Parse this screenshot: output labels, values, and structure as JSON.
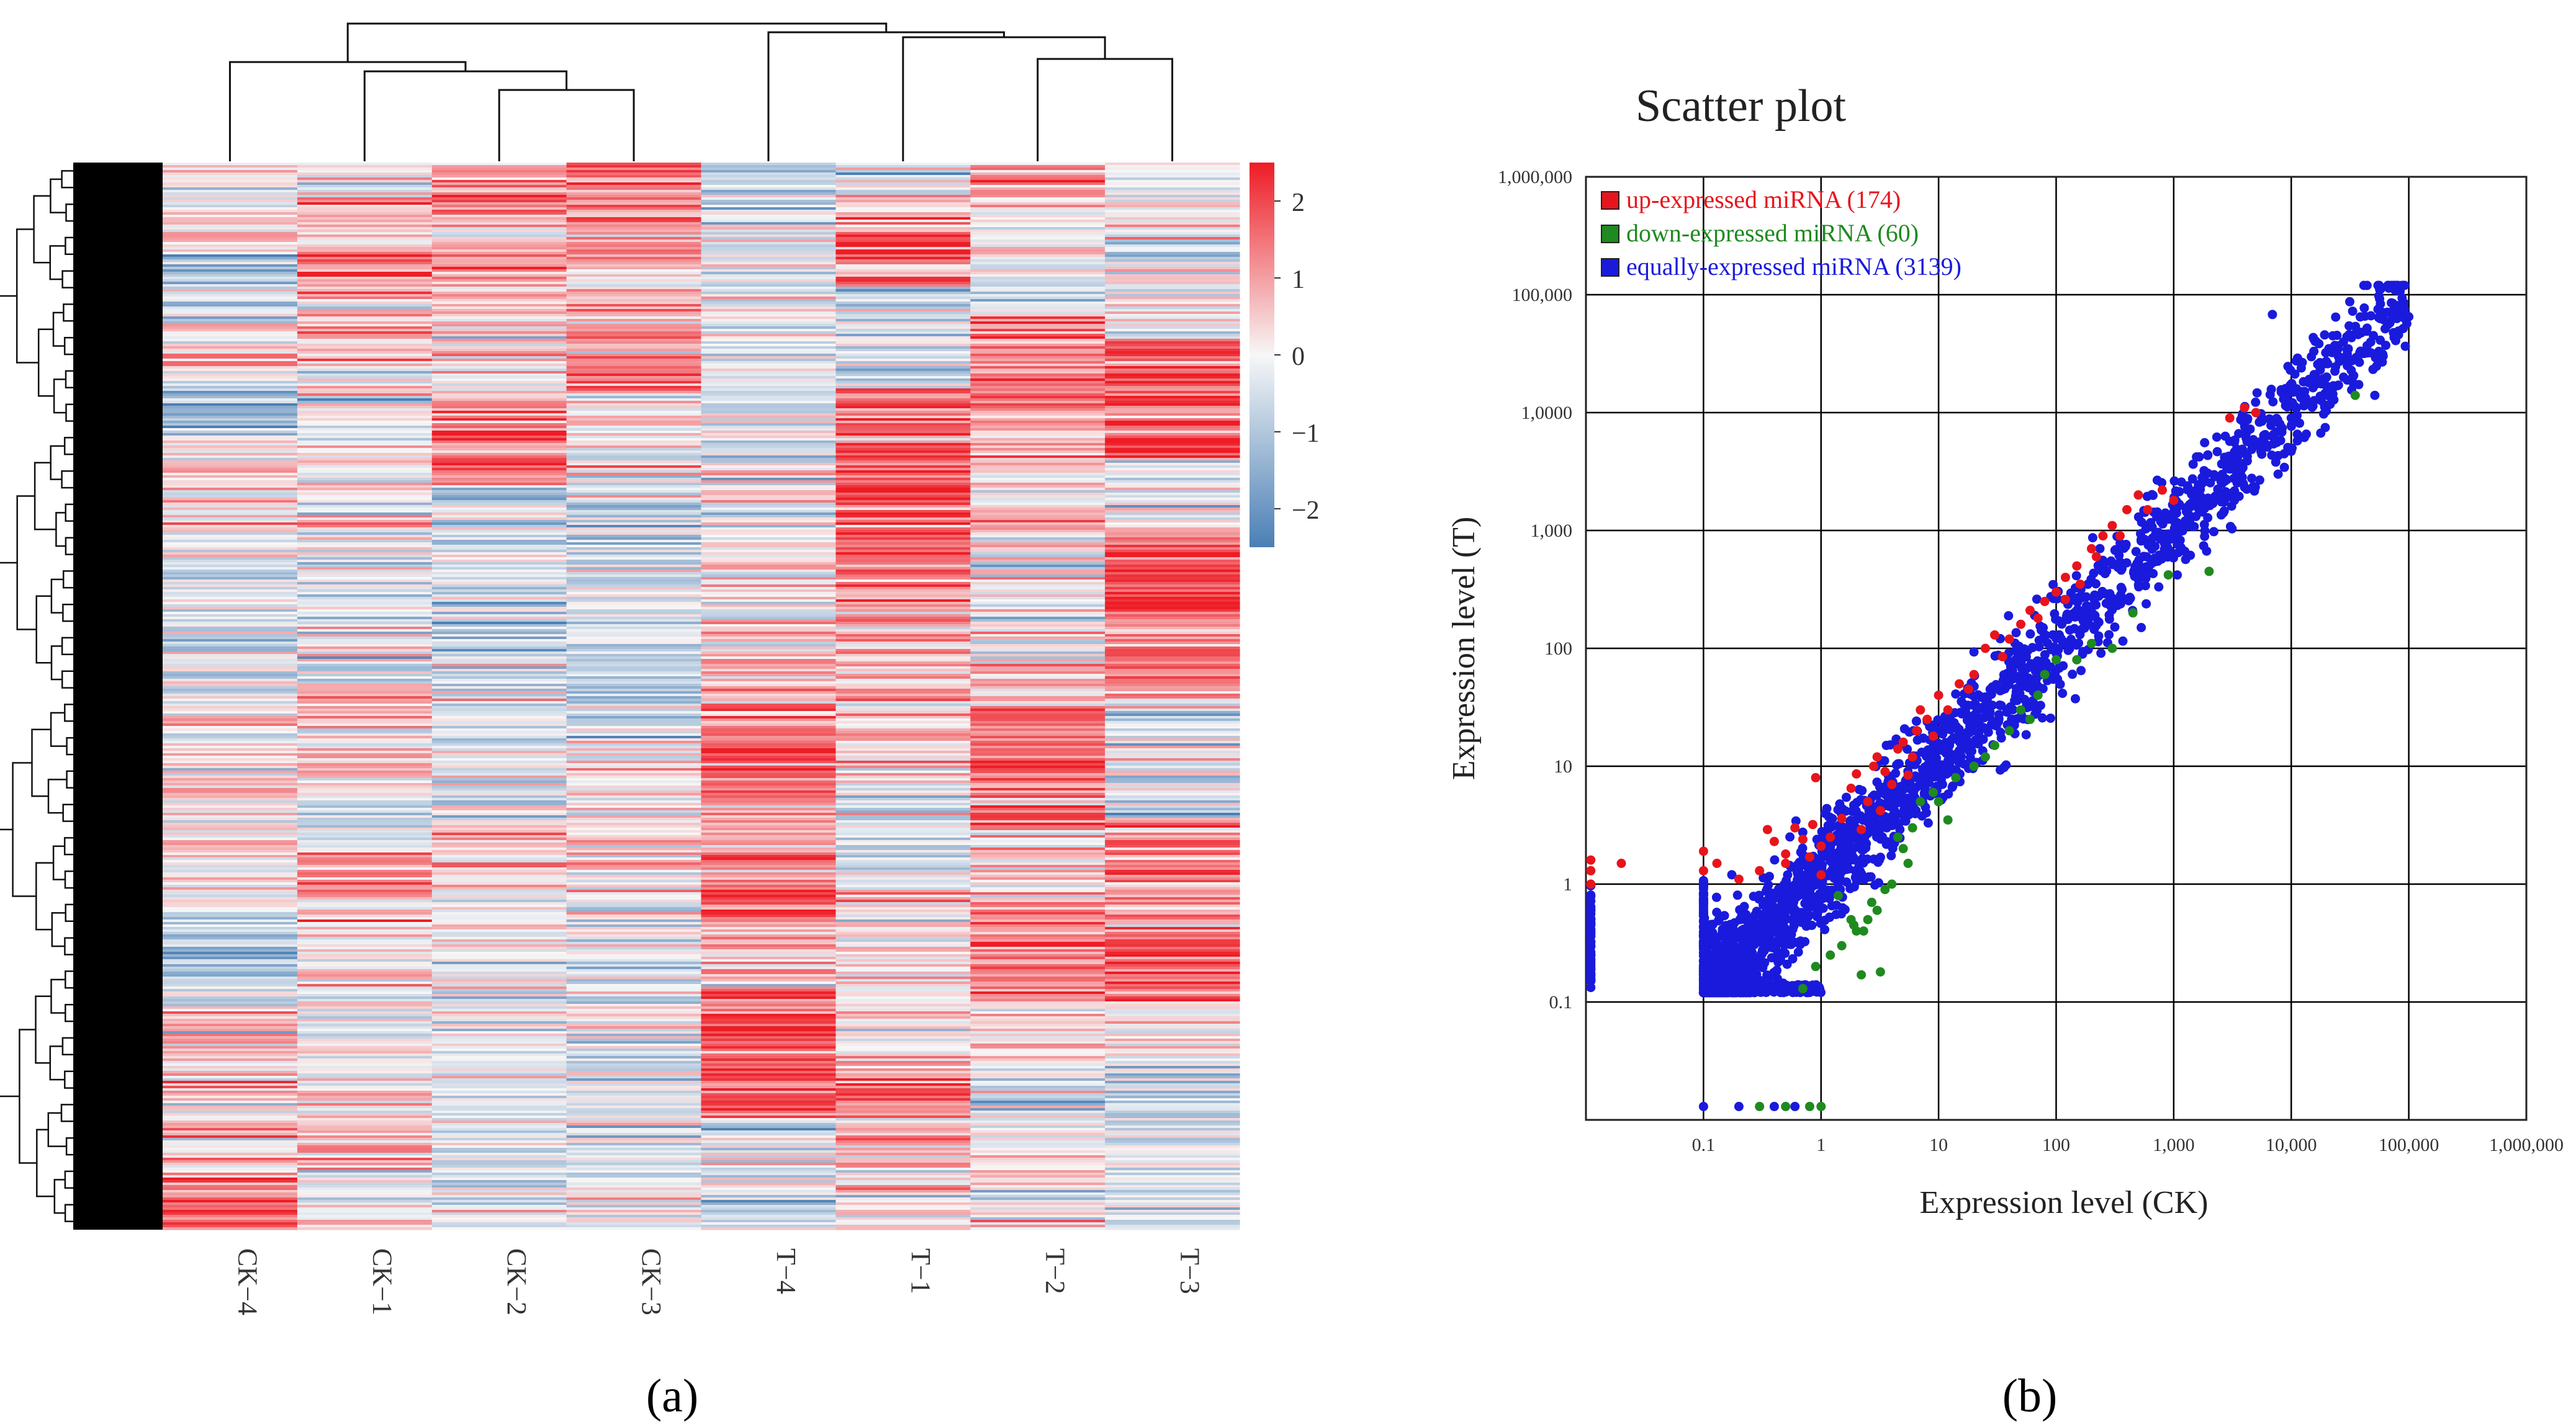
{
  "panels": {
    "a": "(a)",
    "b": "(b)"
  },
  "chart_data": [
    {
      "type": "heatmap",
      "title": "",
      "columns": [
        "CK−4",
        "CK−1",
        "CK−2",
        "CK−3",
        "T−4",
        "T−1",
        "T−2",
        "T−3"
      ],
      "row_count": 3373,
      "colorbar": {
        "ticks": [
          2,
          1,
          0,
          -1,
          -2
        ],
        "tick_labels": [
          "2",
          "1",
          "0",
          "−1",
          "−2"
        ],
        "range": [
          -2.5,
          2.5
        ],
        "low_color": "#4a7fb5",
        "mid_color": "#f7f7f7",
        "high_color": "#ee1c25"
      },
      "column_dendrogram": true,
      "row_dendrogram": true,
      "column_profile": {
        "CK−4": [
          [
            0.0,
            0.1
          ],
          [
            0.05,
            0.3
          ],
          [
            0.12,
            -0.9
          ],
          [
            0.18,
            0.7
          ],
          [
            0.22,
            -1.3
          ],
          [
            0.3,
            0.2
          ],
          [
            0.42,
            -0.8
          ],
          [
            0.55,
            0.2
          ],
          [
            0.65,
            0.3
          ],
          [
            0.75,
            -1.0
          ],
          [
            0.83,
            0.9
          ],
          [
            0.93,
            0.3
          ],
          [
            0.96,
            2.2
          ],
          [
            1.0,
            2.2
          ]
        ],
        "CK−1": [
          [
            0.0,
            -0.2
          ],
          [
            0.06,
            0.6
          ],
          [
            0.1,
            1.9
          ],
          [
            0.15,
            1.2
          ],
          [
            0.22,
            -0.2
          ],
          [
            0.3,
            0.3
          ],
          [
            0.42,
            -0.5
          ],
          [
            0.55,
            0.6
          ],
          [
            0.63,
            -0.6
          ],
          [
            0.66,
            1.9
          ],
          [
            0.72,
            0.3
          ],
          [
            0.82,
            -0.5
          ],
          [
            0.9,
            0.5
          ],
          [
            1.0,
            0.0
          ]
        ],
        "CK−2": [
          [
            0.0,
            0.6
          ],
          [
            0.03,
            1.5
          ],
          [
            0.12,
            1.2
          ],
          [
            0.18,
            0.5
          ],
          [
            0.27,
            2.2
          ],
          [
            0.33,
            -0.6
          ],
          [
            0.45,
            -0.7
          ],
          [
            0.5,
            -1.0
          ],
          [
            0.58,
            -0.3
          ],
          [
            0.65,
            0.4
          ],
          [
            0.72,
            -0.4
          ],
          [
            0.82,
            -0.3
          ],
          [
            0.9,
            -0.5
          ],
          [
            1.0,
            -0.3
          ]
        ],
        "CK−3": [
          [
            0.0,
            2.2
          ],
          [
            0.05,
            1.9
          ],
          [
            0.12,
            0.8
          ],
          [
            0.18,
            1.4
          ],
          [
            0.25,
            0.4
          ],
          [
            0.35,
            -0.5
          ],
          [
            0.45,
            -0.9
          ],
          [
            0.5,
            -1.3
          ],
          [
            0.58,
            -0.2
          ],
          [
            0.65,
            0.4
          ],
          [
            0.72,
            -0.5
          ],
          [
            0.82,
            -0.4
          ],
          [
            0.9,
            -0.6
          ],
          [
            1.0,
            -0.3
          ]
        ],
        "T−4": [
          [
            0.0,
            -0.8
          ],
          [
            0.08,
            -0.6
          ],
          [
            0.2,
            -0.3
          ],
          [
            0.3,
            -0.2
          ],
          [
            0.42,
            0.5
          ],
          [
            0.5,
            1.0
          ],
          [
            0.56,
            2.2
          ],
          [
            0.61,
            1.4
          ],
          [
            0.68,
            2.4
          ],
          [
            0.74,
            0.5
          ],
          [
            0.8,
            2.5
          ],
          [
            0.86,
            2.6
          ],
          [
            0.93,
            -0.4
          ],
          [
            1.0,
            -0.3
          ]
        ],
        "T−1": [
          [
            0.0,
            -0.4
          ],
          [
            0.05,
            0.8
          ],
          [
            0.08,
            2.3
          ],
          [
            0.15,
            -0.9
          ],
          [
            0.27,
            2.4
          ],
          [
            0.35,
            2.5
          ],
          [
            0.4,
            1.3
          ],
          [
            0.48,
            0.8
          ],
          [
            0.55,
            0.4
          ],
          [
            0.63,
            -0.8
          ],
          [
            0.72,
            0.2
          ],
          [
            0.82,
            0.5
          ],
          [
            0.88,
            1.5
          ],
          [
            1.0,
            0.2
          ]
        ],
        "T−2": [
          [
            0.0,
            1.2
          ],
          [
            0.08,
            -0.4
          ],
          [
            0.2,
            1.5
          ],
          [
            0.3,
            0.8
          ],
          [
            0.4,
            -0.3
          ],
          [
            0.5,
            0.4
          ],
          [
            0.52,
            2.5
          ],
          [
            0.6,
            2.3
          ],
          [
            0.65,
            0.5
          ],
          [
            0.75,
            2.1
          ],
          [
            0.82,
            0.3
          ],
          [
            0.9,
            -0.5
          ],
          [
            1.0,
            -0.2
          ]
        ],
        "T−3": [
          [
            0.0,
            -0.2
          ],
          [
            0.12,
            -0.5
          ],
          [
            0.21,
            2.2
          ],
          [
            0.25,
            2.3
          ],
          [
            0.3,
            -0.3
          ],
          [
            0.38,
            2.4
          ],
          [
            0.45,
            2.0
          ],
          [
            0.55,
            -0.4
          ],
          [
            0.68,
            1.5
          ],
          [
            0.75,
            2.4
          ],
          [
            0.82,
            0.0
          ],
          [
            0.9,
            -0.6
          ],
          [
            1.0,
            -0.5
          ]
        ]
      }
    },
    {
      "type": "scatter",
      "title": "Scatter plot",
      "xlabel": "Expression level (CK)",
      "ylabel": "Expression level (T)",
      "xscale": "log",
      "yscale": "log",
      "xlim": [
        0.01,
        1000000
      ],
      "ylim": [
        0.01,
        1000000
      ],
      "grid": true,
      "x_tick_values": [
        0.1,
        1,
        10,
        100,
        1000,
        10000,
        100000,
        1000000
      ],
      "x_tick_labels": [
        "0.1",
        "1",
        "10",
        "100",
        "1,000",
        "10,000",
        "100,000",
        "1,000,000"
      ],
      "y_tick_values": [
        1000000,
        100000,
        10000,
        1000,
        100,
        10,
        1,
        0.1
      ],
      "y_tick_labels": [
        "1,000,000",
        "100,000",
        "1,0000",
        "1,000",
        "100",
        "10",
        "1",
        "0.1"
      ],
      "legend": {
        "placement": "top-left",
        "entries": [
          {
            "label": "up-expressed miRNA (174)",
            "color": "#e8141c"
          },
          {
            "label": "down-expressed miRNA (60)",
            "color": "#1f8a1f"
          },
          {
            "label": "equally-expressed miRNA (3139)",
            "color": "#1a1adc"
          }
        ]
      },
      "series": [
        {
          "name": "up-expressed miRNA (174)",
          "color": "#e8141c",
          "points": [
            [
              0.011,
              1.6
            ],
            [
              0.011,
              1.3
            ],
            [
              0.011,
              1.0
            ],
            [
              0.1,
              1.9
            ],
            [
              0.1,
              1.3
            ],
            [
              0.13,
              1.5
            ],
            [
              0.2,
              1.1
            ],
            [
              0.3,
              1.3
            ],
            [
              0.5,
              1.8
            ],
            [
              0.5,
              1.5
            ],
            [
              0.7,
              2.4
            ],
            [
              0.8,
              1.7
            ],
            [
              1.0,
              1.2
            ],
            [
              1.0,
              2.1
            ],
            [
              0.35,
              2.9
            ],
            [
              0.4,
              2.3
            ],
            [
              0.6,
              3.0
            ],
            [
              0.85,
              3.2
            ],
            [
              0.9,
              8.0
            ],
            [
              1.2,
              2.5
            ],
            [
              1.5,
              3.6
            ],
            [
              1.8,
              6.5
            ],
            [
              2.0,
              8.6
            ],
            [
              2.5,
              5.0
            ],
            [
              2.8,
              10.0
            ],
            [
              3.0,
              12.0
            ],
            [
              3.5,
              9.0
            ],
            [
              4.0,
              7.0
            ],
            [
              4.5,
              14.0
            ],
            [
              5.0,
              16.0
            ],
            [
              6.0,
              12.0
            ],
            [
              6.5,
              20.0
            ],
            [
              7.0,
              30.0
            ],
            [
              8.0,
              25.0
            ],
            [
              10.0,
              40.0
            ],
            [
              12.0,
              30.0
            ],
            [
              15.0,
              50.0
            ],
            [
              20.0,
              60.0
            ],
            [
              25.0,
              100.0
            ],
            [
              30.0,
              130.0
            ],
            [
              40.0,
              120.0
            ],
            [
              50.0,
              160.0
            ],
            [
              60.0,
              210.0
            ],
            [
              80.0,
              250.0
            ],
            [
              100.0,
              300.0
            ],
            [
              120.0,
              400.0
            ],
            [
              150.0,
              500.0
            ],
            [
              200.0,
              700.0
            ],
            [
              250.0,
              900.0
            ],
            [
              300.0,
              1100.0
            ],
            [
              400.0,
              1500.0
            ],
            [
              500.0,
              2000.0
            ],
            [
              800.0,
              2200.0
            ],
            [
              1000.0,
              1800.0
            ],
            [
              3000.0,
              9000.0
            ],
            [
              4000.0,
              11000.0
            ],
            [
              5000.0,
              10000.0
            ],
            [
              0.02,
              1.5
            ],
            [
              2.2,
              2.9
            ],
            [
              3.2,
              4.2
            ],
            [
              5.5,
              8.4
            ],
            [
              9.0,
              18.0
            ],
            [
              18.0,
              45.0
            ],
            [
              35.0,
              85.0
            ],
            [
              70.0,
              180.0
            ],
            [
              120.0,
              260.0
            ],
            [
              160.0,
              350.0
            ],
            [
              220.0,
              600.0
            ],
            [
              350.0,
              900.0
            ],
            [
              600.0,
              1500.0
            ]
          ]
        },
        {
          "name": "down-expressed miRNA (60)",
          "color": "#1f8a1f",
          "points": [
            [
              0.3,
              0.013
            ],
            [
              0.8,
              0.013
            ],
            [
              0.5,
              0.013
            ],
            [
              1.0,
              0.013
            ],
            [
              0.7,
              0.13
            ],
            [
              0.9,
              0.2
            ],
            [
              1.2,
              0.25
            ],
            [
              1.5,
              0.3
            ],
            [
              2.0,
              0.4
            ],
            [
              2.5,
              0.5
            ],
            [
              3.0,
              0.6
            ],
            [
              3.2,
              0.18
            ],
            [
              2.2,
              0.17
            ],
            [
              2.3,
              0.4
            ],
            [
              1.8,
              0.5
            ],
            [
              1.4,
              0.8
            ],
            [
              4.0,
              1.0
            ],
            [
              4.5,
              2.5
            ],
            [
              5.0,
              2.0
            ],
            [
              5.5,
              1.5
            ],
            [
              6.0,
              3.0
            ],
            [
              7.0,
              5.0
            ],
            [
              9.0,
              6.0
            ],
            [
              10.0,
              5.0
            ],
            [
              14.0,
              8.0
            ],
            [
              20.0,
              10.0
            ],
            [
              25.0,
              12.0
            ],
            [
              40.0,
              20.0
            ],
            [
              50.0,
              30.0
            ],
            [
              70.0,
              40.0
            ],
            [
              80.0,
              60.0
            ],
            [
              100.0,
              80.0
            ],
            [
              150.0,
              80.0
            ],
            [
              200.0,
              110.0
            ],
            [
              300.0,
              100.0
            ],
            [
              450.0,
              200.0
            ],
            [
              900.0,
              420.0
            ],
            [
              2000.0,
              450.0
            ],
            [
              35000.0,
              14000.0
            ],
            [
              3.5,
              0.9
            ],
            [
              2.7,
              0.7
            ],
            [
              1.9,
              0.45
            ],
            [
              12.0,
              3.5
            ],
            [
              30.0,
              15.0
            ],
            [
              60.0,
              25.0
            ]
          ]
        },
        {
          "name": "equally-expressed miRNA (3139)",
          "color": "#1a1adc",
          "generator": {
            "count": 3139,
            "x_range": [
              0.1,
              100000
            ],
            "spread_log10": 0.22,
            "floor_y": 0.12,
            "floor_x": 0.1,
            "axis_x": 0.011
          },
          "points": [
            [
              90000.0,
              80000.0
            ],
            [
              100000.0,
              65000.0
            ],
            [
              50000.0,
              45000.0
            ],
            [
              30000.0,
              25000.0
            ],
            [
              20000.0,
              20000.0
            ],
            [
              15000.0,
              12000.0
            ],
            [
              10000.0,
              9000.0
            ],
            [
              8000.0,
              8000.0
            ],
            [
              6000.0,
              6500.0
            ],
            [
              0.1,
              0.013
            ],
            [
              0.2,
              0.013
            ],
            [
              0.4,
              0.013
            ],
            [
              0.6,
              0.013
            ],
            [
              0.011,
              0.5
            ],
            [
              0.011,
              0.3
            ],
            [
              0.011,
              0.2
            ],
            [
              0.011,
              0.15
            ]
          ]
        }
      ]
    }
  ]
}
